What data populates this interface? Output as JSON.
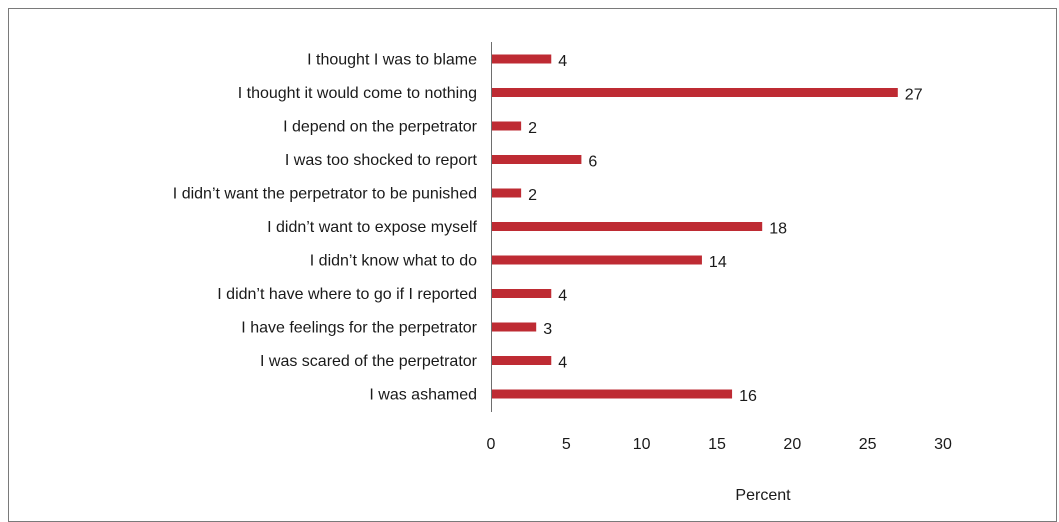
{
  "chart_data": {
    "type": "bar",
    "orientation": "horizontal",
    "categories": [
      "I thought I was to blame",
      "I thought it would come to nothing",
      "I depend on the perpetrator",
      "I was too shocked to report",
      "I didn’t want the perpetrator to be punished",
      "I didn’t want to expose myself",
      "I didn’t know what to do",
      "I didn’t have where to go if I reported",
      "I have feelings for the perpetrator",
      "I was scared of the perpetrator",
      "I was ashamed"
    ],
    "values": [
      4,
      27,
      2,
      6,
      2,
      18,
      14,
      4,
      3,
      4,
      16
    ],
    "value_labels": [
      "4",
      "27",
      "2",
      "6",
      "2",
      "18",
      "14",
      "4",
      "3",
      "4",
      "16"
    ],
    "xlabel": "Percent",
    "xlim": [
      0,
      30
    ],
    "xticks": [
      0,
      5,
      10,
      15,
      20,
      25,
      30
    ],
    "grid": false,
    "legend": "none",
    "bar_color": "#be2b33"
  }
}
